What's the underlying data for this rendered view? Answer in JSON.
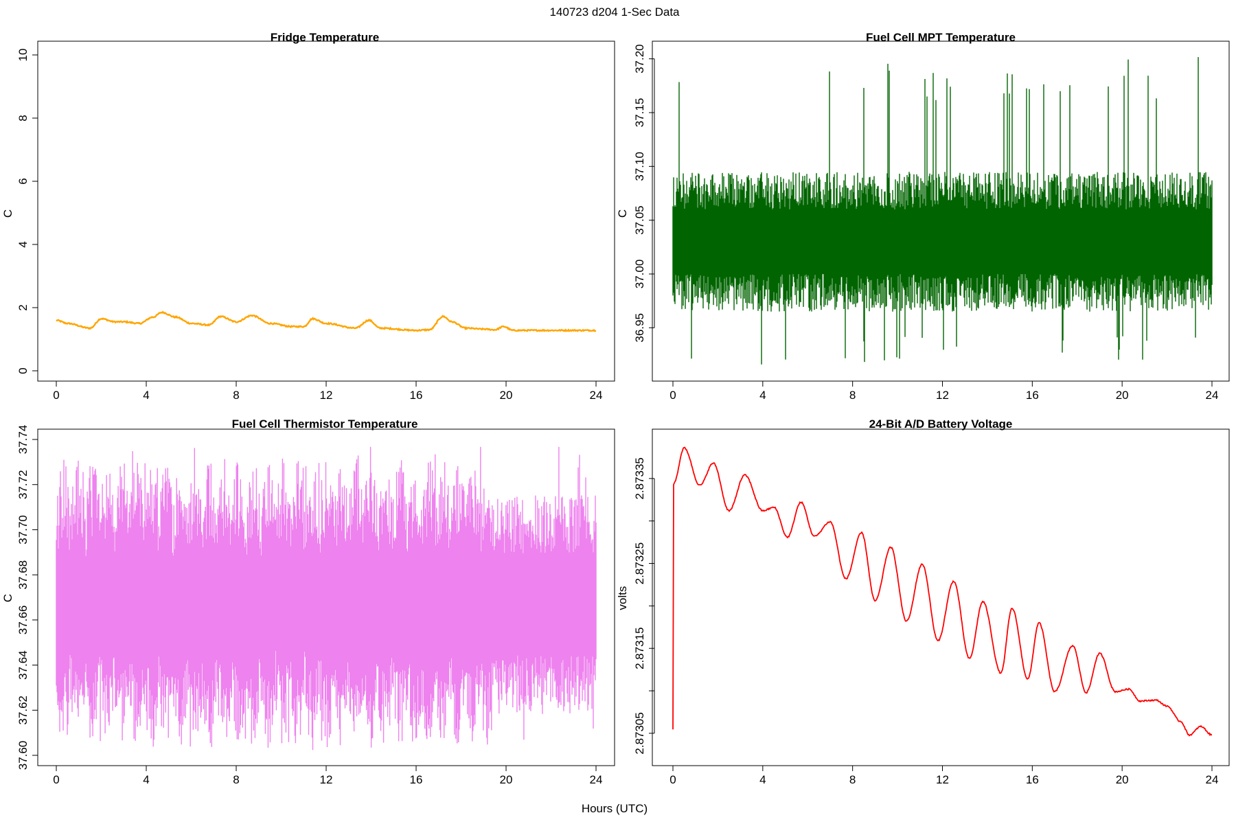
{
  "figure": {
    "title": "140723   d204   1-Sec Data",
    "shared_xlabel": "Hours (UTC)"
  },
  "chart_data": [
    {
      "id": "fridge",
      "type": "line",
      "title": "Fridge Temperature",
      "xlabel": "",
      "ylabel": "C",
      "color": "#ffa500",
      "xlim": [
        0,
        24
      ],
      "ylim": [
        0,
        10
      ],
      "xticks": [
        0,
        4,
        8,
        12,
        16,
        20,
        24
      ],
      "yticks": [
        0,
        2,
        4,
        6,
        8,
        10
      ],
      "ytick_labels": [
        "0",
        "2",
        "4",
        "6",
        "8",
        "10"
      ],
      "noise": 0.02,
      "series": [
        {
          "name": "Fridge Temperature",
          "x": [
            0,
            0.5,
            1.5,
            2,
            2.6,
            3,
            3.7,
            4.3,
            4.7,
            5.3,
            6,
            6.8,
            7.3,
            8,
            8.7,
            9.5,
            10.5,
            11,
            11.4,
            12,
            13.3,
            13.9,
            14.4,
            16,
            16.6,
            17.2,
            17.6,
            18.2,
            19,
            19.5,
            19.9,
            20.3,
            21,
            22,
            23,
            24
          ],
          "values": [
            1.6,
            1.5,
            1.35,
            1.65,
            1.55,
            1.55,
            1.5,
            1.7,
            1.85,
            1.7,
            1.5,
            1.45,
            1.72,
            1.55,
            1.75,
            1.5,
            1.4,
            1.4,
            1.65,
            1.5,
            1.35,
            1.6,
            1.35,
            1.28,
            1.3,
            1.72,
            1.55,
            1.35,
            1.32,
            1.3,
            1.4,
            1.28,
            1.28,
            1.28,
            1.28,
            1.28
          ]
        }
      ]
    },
    {
      "id": "mpt",
      "type": "line",
      "title": "Fuel Cell MPT Temperature",
      "xlabel": "",
      "ylabel": "C",
      "color": "#006400",
      "xlim": [
        0,
        24
      ],
      "ylim": [
        36.91,
        37.21
      ],
      "xticks": [
        0,
        4,
        8,
        12,
        16,
        20,
        24
      ],
      "yticks": [
        36.95,
        37.0,
        37.05,
        37.1,
        37.15,
        37.2
      ],
      "ytick_labels": [
        "36.95",
        "37.00",
        "37.05",
        "37.10",
        "37.15",
        "37.20"
      ],
      "band": {
        "center": 37.03,
        "half_width": 0.05,
        "max": 37.205,
        "min": 36.915
      }
    },
    {
      "id": "thermistor",
      "type": "line",
      "title": "Fuel Cell Thermistor Temperature",
      "xlabel": "",
      "ylabel": "C",
      "color": "#ee82ee",
      "xlim": [
        0,
        24
      ],
      "ylim": [
        37.6,
        37.74
      ],
      "xticks": [
        0,
        4,
        8,
        12,
        16,
        20,
        24
      ],
      "yticks": [
        37.6,
        37.62,
        37.64,
        37.66,
        37.68,
        37.7,
        37.72,
        37.74
      ],
      "ytick_labels": [
        "37.60",
        "37.62",
        "37.64",
        "37.66",
        "37.68",
        "37.70",
        "37.72",
        "37.74"
      ],
      "band": {
        "center": 37.667,
        "period_hours": 1.3,
        "min_half": 0.018,
        "max_half": 0.05,
        "max": 37.737,
        "min": 37.602
      }
    },
    {
      "id": "battery",
      "type": "line",
      "title": "24-Bit A/D Battery Voltage",
      "xlabel": "",
      "ylabel": "volts",
      "color": "#ff0000",
      "xlim": [
        0,
        24
      ],
      "ylim": [
        2.87302,
        2.8734
      ],
      "xticks": [
        0,
        4,
        8,
        12,
        16,
        20,
        24
      ],
      "yticks": [
        2.87305,
        2.8731,
        2.87315,
        2.8732,
        2.87325,
        2.8733,
        2.87335
      ],
      "ytick_labels": [
        "2.87305",
        "",
        "2.87315",
        "",
        "2.87325",
        "",
        "2.87335"
      ],
      "noise": 8e-07,
      "series": [
        {
          "name": "Battery Voltage",
          "x": [
            0,
            0.02,
            0.04,
            0.5,
            1.2,
            1.8,
            2.5,
            3.2,
            4,
            4.5,
            5.1,
            5.7,
            6.3,
            7,
            7.7,
            8.4,
            9,
            9.7,
            10.4,
            11.1,
            11.8,
            12.5,
            13.2,
            13.8,
            14.6,
            15.1,
            15.8,
            16.3,
            17,
            17.8,
            18.4,
            19,
            19.7,
            20.3,
            20.8,
            21.5,
            22,
            22.6,
            23,
            23.5,
            24
          ],
          "values": [
            2.873055,
            2.873342,
            2.873345,
            2.873386,
            2.873342,
            2.873368,
            2.873312,
            2.873354,
            2.873312,
            2.873316,
            2.873281,
            2.873322,
            2.873282,
            2.873299,
            2.873232,
            2.873286,
            2.873206,
            2.873269,
            2.873182,
            2.873249,
            2.873159,
            2.873229,
            2.873138,
            2.873205,
            2.873121,
            2.873197,
            2.873114,
            2.87318,
            2.873099,
            2.873153,
            2.873098,
            2.873144,
            2.873099,
            2.873102,
            2.873088,
            2.873089,
            2.873082,
            2.873064,
            2.873048,
            2.873058,
            2.873048
          ]
        }
      ]
    }
  ]
}
